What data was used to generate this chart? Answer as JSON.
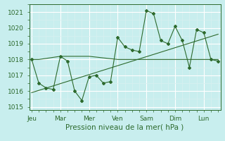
{
  "bg_color": "#c8eeee",
  "grid_color": "#aadddd",
  "line_color": "#2d6a2d",
  "xlabel": "Pression niveau de la mer( hPa )",
  "ylim": [
    1014.8,
    1021.5
  ],
  "yticks": [
    1015,
    1016,
    1017,
    1018,
    1019,
    1020,
    1021
  ],
  "xlim": [
    -2,
    158
  ],
  "day_labels": [
    "Jeu",
    "Mar",
    "Mer",
    "Ven",
    "Sam",
    "Dim",
    "Lun"
  ],
  "day_positions": [
    0,
    24,
    48,
    72,
    96,
    120,
    144
  ],
  "series1_x": [
    0,
    6,
    12,
    18,
    24,
    30,
    36,
    42,
    48,
    54,
    60,
    66,
    72,
    78,
    84,
    90,
    96,
    102,
    108,
    114,
    120,
    126,
    132,
    138,
    144,
    150,
    156
  ],
  "series1_y": [
    1018.0,
    1016.5,
    1016.2,
    1016.1,
    1018.2,
    1017.9,
    1016.0,
    1015.4,
    1016.9,
    1017.0,
    1016.5,
    1016.6,
    1019.4,
    1018.8,
    1018.6,
    1018.5,
    1021.1,
    1020.9,
    1019.2,
    1019.0,
    1020.1,
    1019.2,
    1017.5,
    1019.9,
    1019.7,
    1018.0,
    1017.9
  ],
  "series2_x": [
    0,
    6,
    24,
    30,
    48,
    72,
    96,
    102,
    120,
    144,
    156
  ],
  "series2_y": [
    1018.0,
    1018.0,
    1018.2,
    1018.2,
    1018.2,
    1018.0,
    1018.0,
    1018.0,
    1018.0,
    1018.0,
    1018.0
  ],
  "trend_x": [
    0,
    156
  ],
  "trend_y": [
    1015.9,
    1019.6
  ],
  "grid_major_color": "#ffffff",
  "grid_minor_color": "#d8f0f0"
}
